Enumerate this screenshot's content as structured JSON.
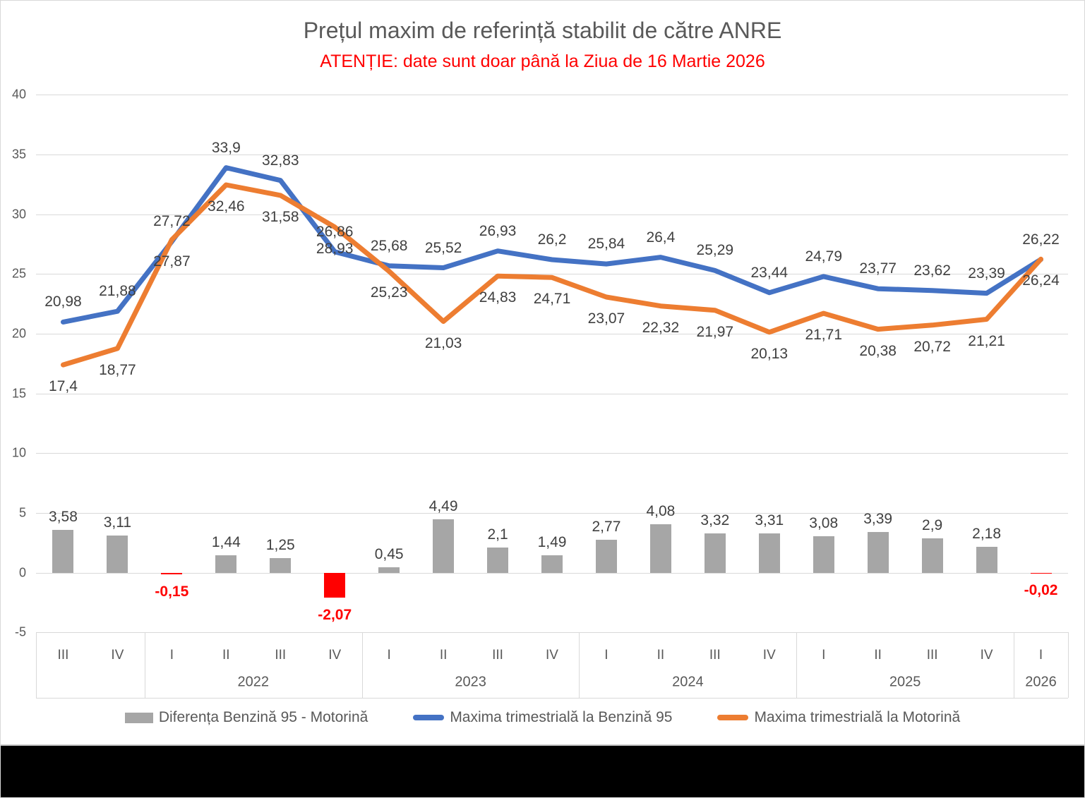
{
  "chart_data": {
    "type": "combo-bar-line",
    "title": "Prețul maxim de referință stabilit de către ANRE",
    "subtitle": "ATENȚIE: date sunt doar până la Ziua de 16 Martie 2026",
    "colors": {
      "bar_positive": "#a6a6a6",
      "bar_negative": "#ff0000",
      "line_benzina": "#4472c4",
      "line_motorina": "#ed7d31",
      "gridline": "#d9d9d9",
      "title_text": "#595959",
      "subtitle_text": "#ff0000",
      "data_label": "#404040",
      "negative_label": "#ff0000",
      "axis_text": "#595959"
    },
    "y_axis": {
      "ticks": [
        40,
        35,
        30,
        25,
        20,
        15,
        10,
        5,
        0,
        -5
      ],
      "min": -5,
      "max": 40,
      "grid": true
    },
    "x_groups": [
      {
        "year": "",
        "quarters": [
          "III",
          "IV"
        ]
      },
      {
        "year": "2022",
        "quarters": [
          "I",
          "II",
          "III",
          "IV"
        ]
      },
      {
        "year": "2023",
        "quarters": [
          "I",
          "II",
          "III",
          "IV"
        ]
      },
      {
        "year": "2024",
        "quarters": [
          "I",
          "II",
          "III",
          "IV"
        ]
      },
      {
        "year": "2025",
        "quarters": [
          "I",
          "II",
          "III",
          "IV"
        ]
      },
      {
        "year": "2026",
        "quarters": [
          "I"
        ]
      }
    ],
    "series": [
      {
        "name": "Diferența Benzină 95 - Motorină",
        "type": "bar",
        "values": [
          3.58,
          3.11,
          -0.15,
          1.44,
          1.25,
          -2.07,
          0.45,
          4.49,
          2.1,
          1.49,
          2.77,
          4.08,
          3.32,
          3.31,
          3.08,
          3.39,
          2.9,
          2.18,
          -0.02
        ],
        "labels": [
          "3,58",
          "3,11",
          "-0,15",
          "1,44",
          "1,25",
          "-2,07",
          "0,45",
          "4,49",
          "2,1",
          "1,49",
          "2,77",
          "4,08",
          "3,32",
          "3,31",
          "3,08",
          "3,39",
          "2,9",
          "2,18",
          "-0,02"
        ]
      },
      {
        "name": "Maxima trimestrială la Benzină 95",
        "type": "line",
        "values": [
          20.98,
          21.88,
          27.72,
          33.9,
          32.83,
          26.86,
          25.68,
          25.52,
          26.93,
          26.2,
          25.84,
          26.4,
          25.29,
          23.44,
          24.79,
          23.77,
          23.62,
          23.39,
          26.22
        ],
        "labels": [
          "20,98",
          "21,88",
          "27,72",
          "33,9",
          "32,83",
          "26,86",
          "25,68",
          "25,52",
          "26,93",
          "26,2",
          "25,84",
          "26,4",
          "25,29",
          "23,44",
          "24,79",
          "23,77",
          "23,62",
          "23,39",
          "26,22"
        ]
      },
      {
        "name": "Maxima trimestrială la Motorină",
        "type": "line",
        "values": [
          17.4,
          18.77,
          27.87,
          32.46,
          31.58,
          28.93,
          25.23,
          21.03,
          24.83,
          24.71,
          23.07,
          22.32,
          21.97,
          20.13,
          21.71,
          20.38,
          20.72,
          21.21,
          26.24
        ],
        "labels": [
          "17,4",
          "18,77",
          "27,87",
          "32,46",
          "31,58",
          "28,93",
          "25,23",
          "21,03",
          "24,83",
          "24,71",
          "23,07",
          "22,32",
          "21,97",
          "20,13",
          "21,71",
          "20,38",
          "20,72",
          "21,21",
          "26,24"
        ]
      }
    ]
  }
}
